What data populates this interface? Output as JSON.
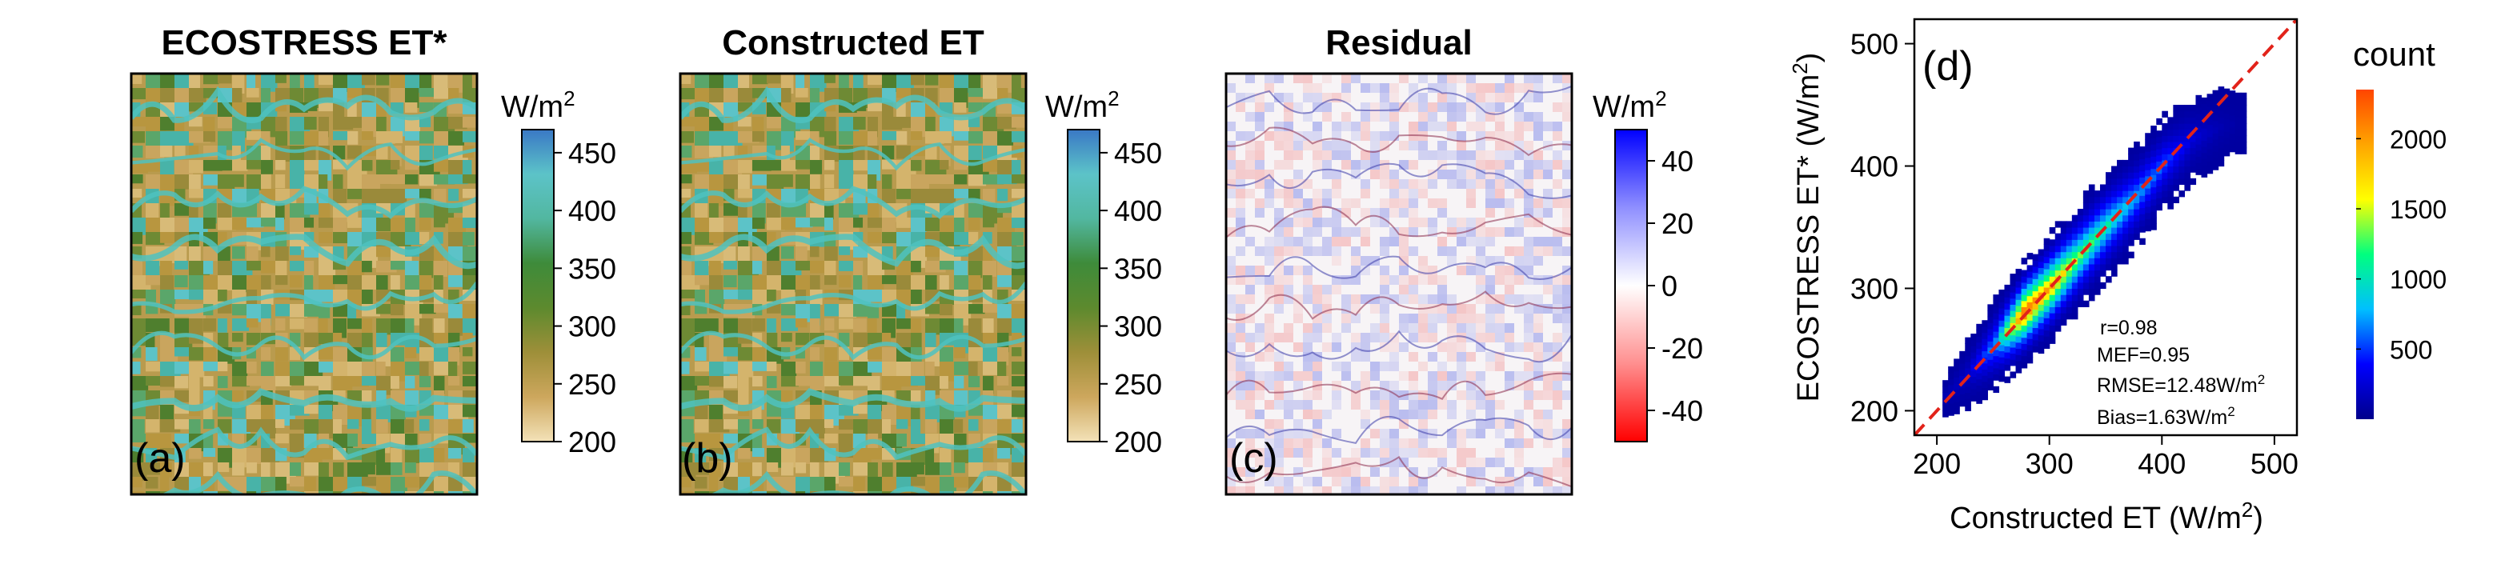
{
  "panels": [
    {
      "title": "ECOSTRESS ET*",
      "letter": "(a)",
      "colorbar": {
        "unit_base": "W/m",
        "unit_sup": "2",
        "range": [
          200,
          470
        ],
        "ticks": [
          "450",
          "400",
          "350",
          "300",
          "250",
          "200"
        ],
        "tick_values": [
          450,
          400,
          350,
          300,
          250,
          200
        ],
        "colors": [
          "#f3e2b8",
          "#cda75d",
          "#9e8f39",
          "#5d8a2e",
          "#3e8b3a",
          "#52b7a0",
          "#5cc3c8",
          "#3a78c5"
        ]
      }
    },
    {
      "title": "Constructed ET",
      "letter": "(b)",
      "colorbar": {
        "unit_base": "W/m",
        "unit_sup": "2",
        "range": [
          200,
          470
        ],
        "ticks": [
          "450",
          "400",
          "350",
          "300",
          "250",
          "200"
        ],
        "tick_values": [
          450,
          400,
          350,
          300,
          250,
          200
        ],
        "colors": [
          "#f3e2b8",
          "#cda75d",
          "#9e8f39",
          "#5d8a2e",
          "#3e8b3a",
          "#52b7a0",
          "#5cc3c8",
          "#3a78c5"
        ]
      }
    },
    {
      "title": "Residual",
      "letter": "(c)",
      "colorbar": {
        "unit_base": "W/m",
        "unit_sup": "2",
        "range": [
          -50,
          50
        ],
        "ticks": [
          "40",
          "20",
          "0",
          "-20",
          "-40"
        ],
        "tick_values": [
          40,
          20,
          0,
          -20,
          -40
        ],
        "colors": [
          "#ff0000",
          "#ff8f8f",
          "#ffffff",
          "#8f8fff",
          "#0000ff"
        ]
      }
    }
  ],
  "scatter": {
    "letter": "(d)",
    "xlabel_base": "Constructed ET (W/m",
    "xlabel_sup": "2",
    "xlabel_tail": ")",
    "ylabel_base": "ECOSTRESS ET* (W/m",
    "ylabel_sup": "2",
    "ylabel_tail": ")",
    "x_ticks": [
      "200",
      "300",
      "400",
      "500"
    ],
    "y_ticks": [
      "200",
      "300",
      "400",
      "500"
    ],
    "stats": {
      "r": "r=0.98",
      "mef": "MEF=0.95",
      "rmse_base": "RMSE=12.48W/m",
      "rmse_sup": "2",
      "bias_base": "Bias=1.63W/m",
      "bias_sup": "2"
    },
    "count_label": "count",
    "count_ticks": [
      "2000",
      "1500",
      "1000",
      "500"
    ],
    "count_tick_values": [
      2000,
      1500,
      1000,
      500
    ],
    "count_colors": [
      "#00008b",
      "#0000ff",
      "#00bfff",
      "#00ff7f",
      "#ffff00",
      "#ffa500",
      "#ff4500"
    ],
    "reference_line_color": "#e2231a"
  },
  "chart_data": {
    "type": "heatmap",
    "title": "",
    "xlabel": "Constructed ET (W/m2)",
    "ylabel": "ECOSTRESS ET* (W/m2)",
    "xlim": [
      180,
      520
    ],
    "ylim": [
      180,
      520
    ],
    "count_range": [
      0,
      2350
    ],
    "density_bands": [
      {
        "x": 205,
        "y_low": 195,
        "y_high": 225,
        "count": 60
      },
      {
        "x": 225,
        "y_low": 200,
        "y_high": 255,
        "count": 150
      },
      {
        "x": 250,
        "y_low": 215,
        "y_high": 290,
        "count": 700
      },
      {
        "x": 275,
        "y_low": 235,
        "y_high": 320,
        "count": 2300
      },
      {
        "x": 300,
        "y_low": 255,
        "y_high": 345,
        "count": 1900
      },
      {
        "x": 325,
        "y_low": 280,
        "y_high": 370,
        "count": 1300
      },
      {
        "x": 350,
        "y_low": 305,
        "y_high": 395,
        "count": 1000
      },
      {
        "x": 375,
        "y_low": 330,
        "y_high": 415,
        "count": 700
      },
      {
        "x": 400,
        "y_low": 360,
        "y_high": 440,
        "count": 500
      },
      {
        "x": 425,
        "y_low": 385,
        "y_high": 455,
        "count": 200
      },
      {
        "x": 450,
        "y_low": 400,
        "y_high": 460,
        "count": 60
      },
      {
        "x": 465,
        "y_low": 410,
        "y_high": 455,
        "count": 20
      }
    ],
    "reference_line": {
      "x": [
        180,
        520
      ],
      "y": [
        180,
        520
      ]
    },
    "annotations": [
      "r=0.98",
      "MEF=0.95",
      "RMSE=12.48W/m2",
      "Bias=1.63W/m2"
    ]
  }
}
